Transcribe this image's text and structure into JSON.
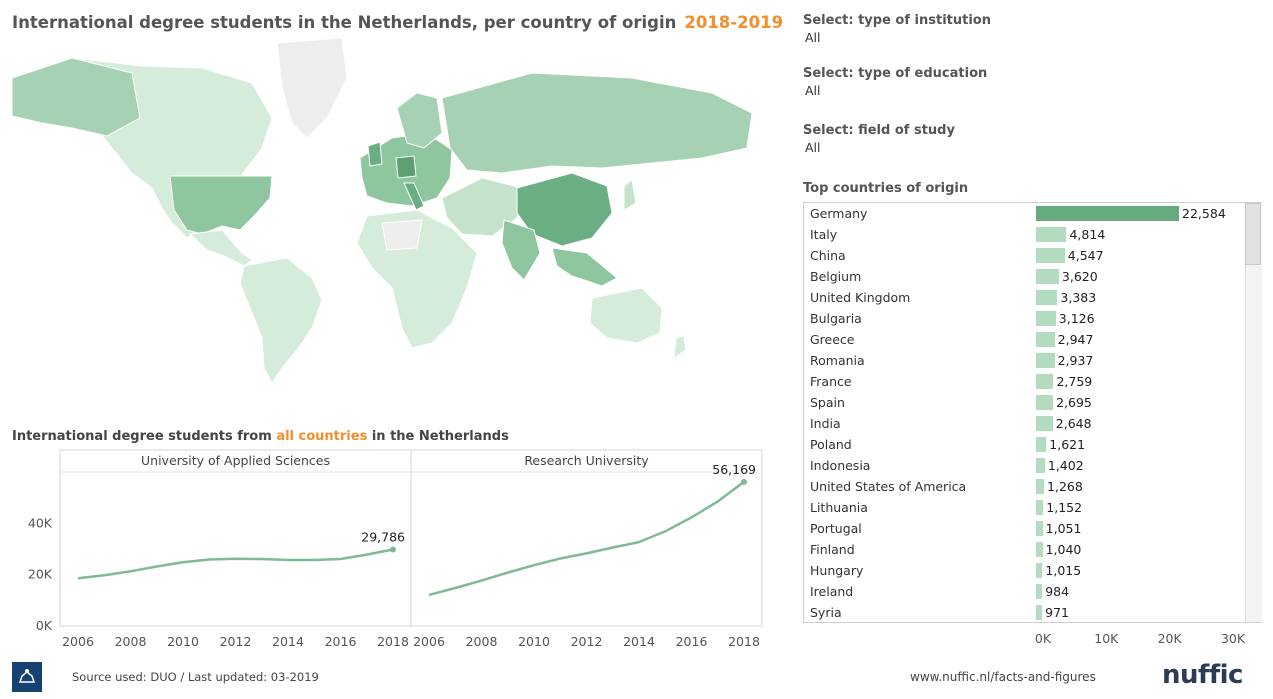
{
  "title": {
    "text": "International degree students in the Netherlands, per country of origin",
    "year": "2018-2019"
  },
  "filters": [
    {
      "label": "Select: type of institution",
      "value": "All"
    },
    {
      "label": "Select: type of education",
      "value": "All"
    },
    {
      "label": "Select: field of study",
      "value": "All"
    }
  ],
  "trend_title": {
    "prefix": "International degree students from",
    "highlight": "all countries",
    "suffix": "in the Netherlands"
  },
  "top_title": "Top countries of origin",
  "footer": {
    "source": "Source used: DUO / Last updated: 03-2019",
    "url": "www.nuffic.nl/facts-and-figures",
    "brand": "nuffic"
  },
  "colors": {
    "accent_orange": "#f28e2b",
    "bar_light": "#b3dbc0",
    "bar_dark": "#66aa7f",
    "line": "#7fb996",
    "map_light": "#d6ecdb",
    "map_mid": "#a6d2b3",
    "map_dark": "#6bae84",
    "map_nodata": "#ededed"
  },
  "chart_data": [
    {
      "type": "map",
      "title": "International degree students in the Netherlands, per country of origin",
      "shading": "choropleth by number of students",
      "highlighted_countries": [
        "China",
        "Germany",
        "United States of America",
        "India",
        "Italy",
        "Indonesia"
      ]
    },
    {
      "type": "bar",
      "title": "Top countries of origin",
      "categories": [
        "Germany",
        "Italy",
        "China",
        "Belgium",
        "United Kingdom",
        "Bulgaria",
        "Greece",
        "Romania",
        "France",
        "Spain",
        "India",
        "Poland",
        "Indonesia",
        "United States of America",
        "Lithuania",
        "Portugal",
        "Finland",
        "Hungary",
        "Ireland",
        "Syria"
      ],
      "values": [
        22584,
        4814,
        4547,
        3620,
        3383,
        3126,
        2947,
        2937,
        2759,
        2695,
        2648,
        1621,
        1402,
        1268,
        1152,
        1051,
        1040,
        1015,
        984,
        971
      ],
      "value_labels": [
        "22,584",
        "4,814",
        "4,547",
        "3,620",
        "3,383",
        "3,126",
        "2,947",
        "2,937",
        "2,759",
        "2,695",
        "2,648",
        "1,621",
        "1,402",
        "1,268",
        "1,152",
        "1,051",
        "1,040",
        "1,015",
        "984",
        "971"
      ],
      "xlim": [
        0,
        30000
      ],
      "xticks": [
        "0K",
        "10K",
        "20K",
        "30K"
      ]
    },
    {
      "type": "line",
      "title": "International degree students from all countries in the Netherlands",
      "panels": [
        {
          "name": "University of Applied Sciences",
          "x": [
            2006,
            2007,
            2008,
            2009,
            2010,
            2011,
            2012,
            2013,
            2014,
            2015,
            2016,
            2017,
            2018
          ],
          "values": [
            18600,
            19800,
            21300,
            23200,
            24800,
            25900,
            26200,
            26100,
            25700,
            25700,
            26100,
            27800,
            29786
          ],
          "end_label": "29,786"
        },
        {
          "name": "Research University",
          "x": [
            2006,
            2007,
            2008,
            2009,
            2010,
            2011,
            2012,
            2013,
            2014,
            2015,
            2016,
            2017,
            2018
          ],
          "values": [
            12100,
            14800,
            17700,
            20800,
            23700,
            26300,
            28300,
            30600,
            32700,
            36900,
            42300,
            48500,
            56169
          ],
          "end_label": "56,169"
        }
      ],
      "ylim": [
        0,
        60000
      ],
      "yticks": [
        "0K",
        "20K",
        "40K"
      ],
      "xticks": [
        "2006",
        "2008",
        "2010",
        "2012",
        "2014",
        "2016",
        "2018"
      ]
    }
  ]
}
